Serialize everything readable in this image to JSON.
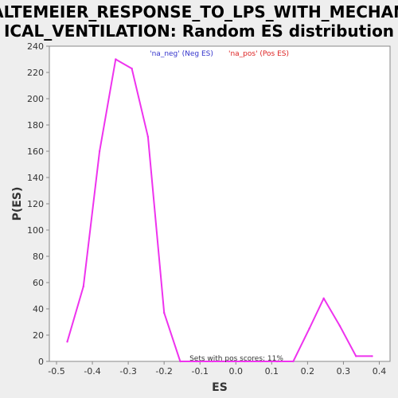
{
  "chart_data": {
    "type": "line",
    "title_line1": "ALTEMEIER_RESPONSE_TO_LPS_WITH_MECHAN",
    "title_line2": "ICAL_VENTILATION: Random ES distribution",
    "xlabel": "ES",
    "ylabel": "P(ES)",
    "xlim": [
      -0.52,
      0.43
    ],
    "ylim": [
      0,
      240
    ],
    "xticks": [
      "-0.5",
      "-0.4",
      "-0.3",
      "-0.2",
      "-0.1",
      "0.0",
      "0.1",
      "0.2",
      "0.3",
      "0.4"
    ],
    "xtick_values": [
      -0.5,
      -0.4,
      -0.3,
      -0.2,
      -0.1,
      0.0,
      0.1,
      0.2,
      0.3,
      0.4
    ],
    "yticks": [
      "0",
      "20",
      "40",
      "60",
      "80",
      "100",
      "120",
      "140",
      "160",
      "180",
      "200",
      "220",
      "240"
    ],
    "ytick_values": [
      0,
      20,
      40,
      60,
      80,
      100,
      120,
      140,
      160,
      180,
      200,
      220,
      240
    ],
    "grid": false,
    "legend_placement": "top-center",
    "legend": [
      {
        "label": "'na_neg' (Neg ES)",
        "color": "#3333cc"
      },
      {
        "label": "'na_pos' (Pos ES)",
        "color": "#dd2222"
      }
    ],
    "annotation": "Sets with pos scores: 11%",
    "line_color": "#ee33ee",
    "series": [
      {
        "x": [
          -0.47,
          -0.425,
          -0.38,
          -0.335,
          -0.29,
          -0.245,
          -0.2,
          -0.155,
          -0.11,
          -0.065,
          -0.02,
          0.025,
          0.07,
          0.115,
          0.16,
          0.205,
          0.245,
          0.29,
          0.335,
          0.38
        ],
        "y": [
          15,
          57,
          160,
          230,
          223,
          171,
          37,
          0,
          0,
          0,
          0,
          0,
          0,
          0,
          0,
          25,
          48,
          27,
          4,
          4
        ]
      }
    ]
  }
}
